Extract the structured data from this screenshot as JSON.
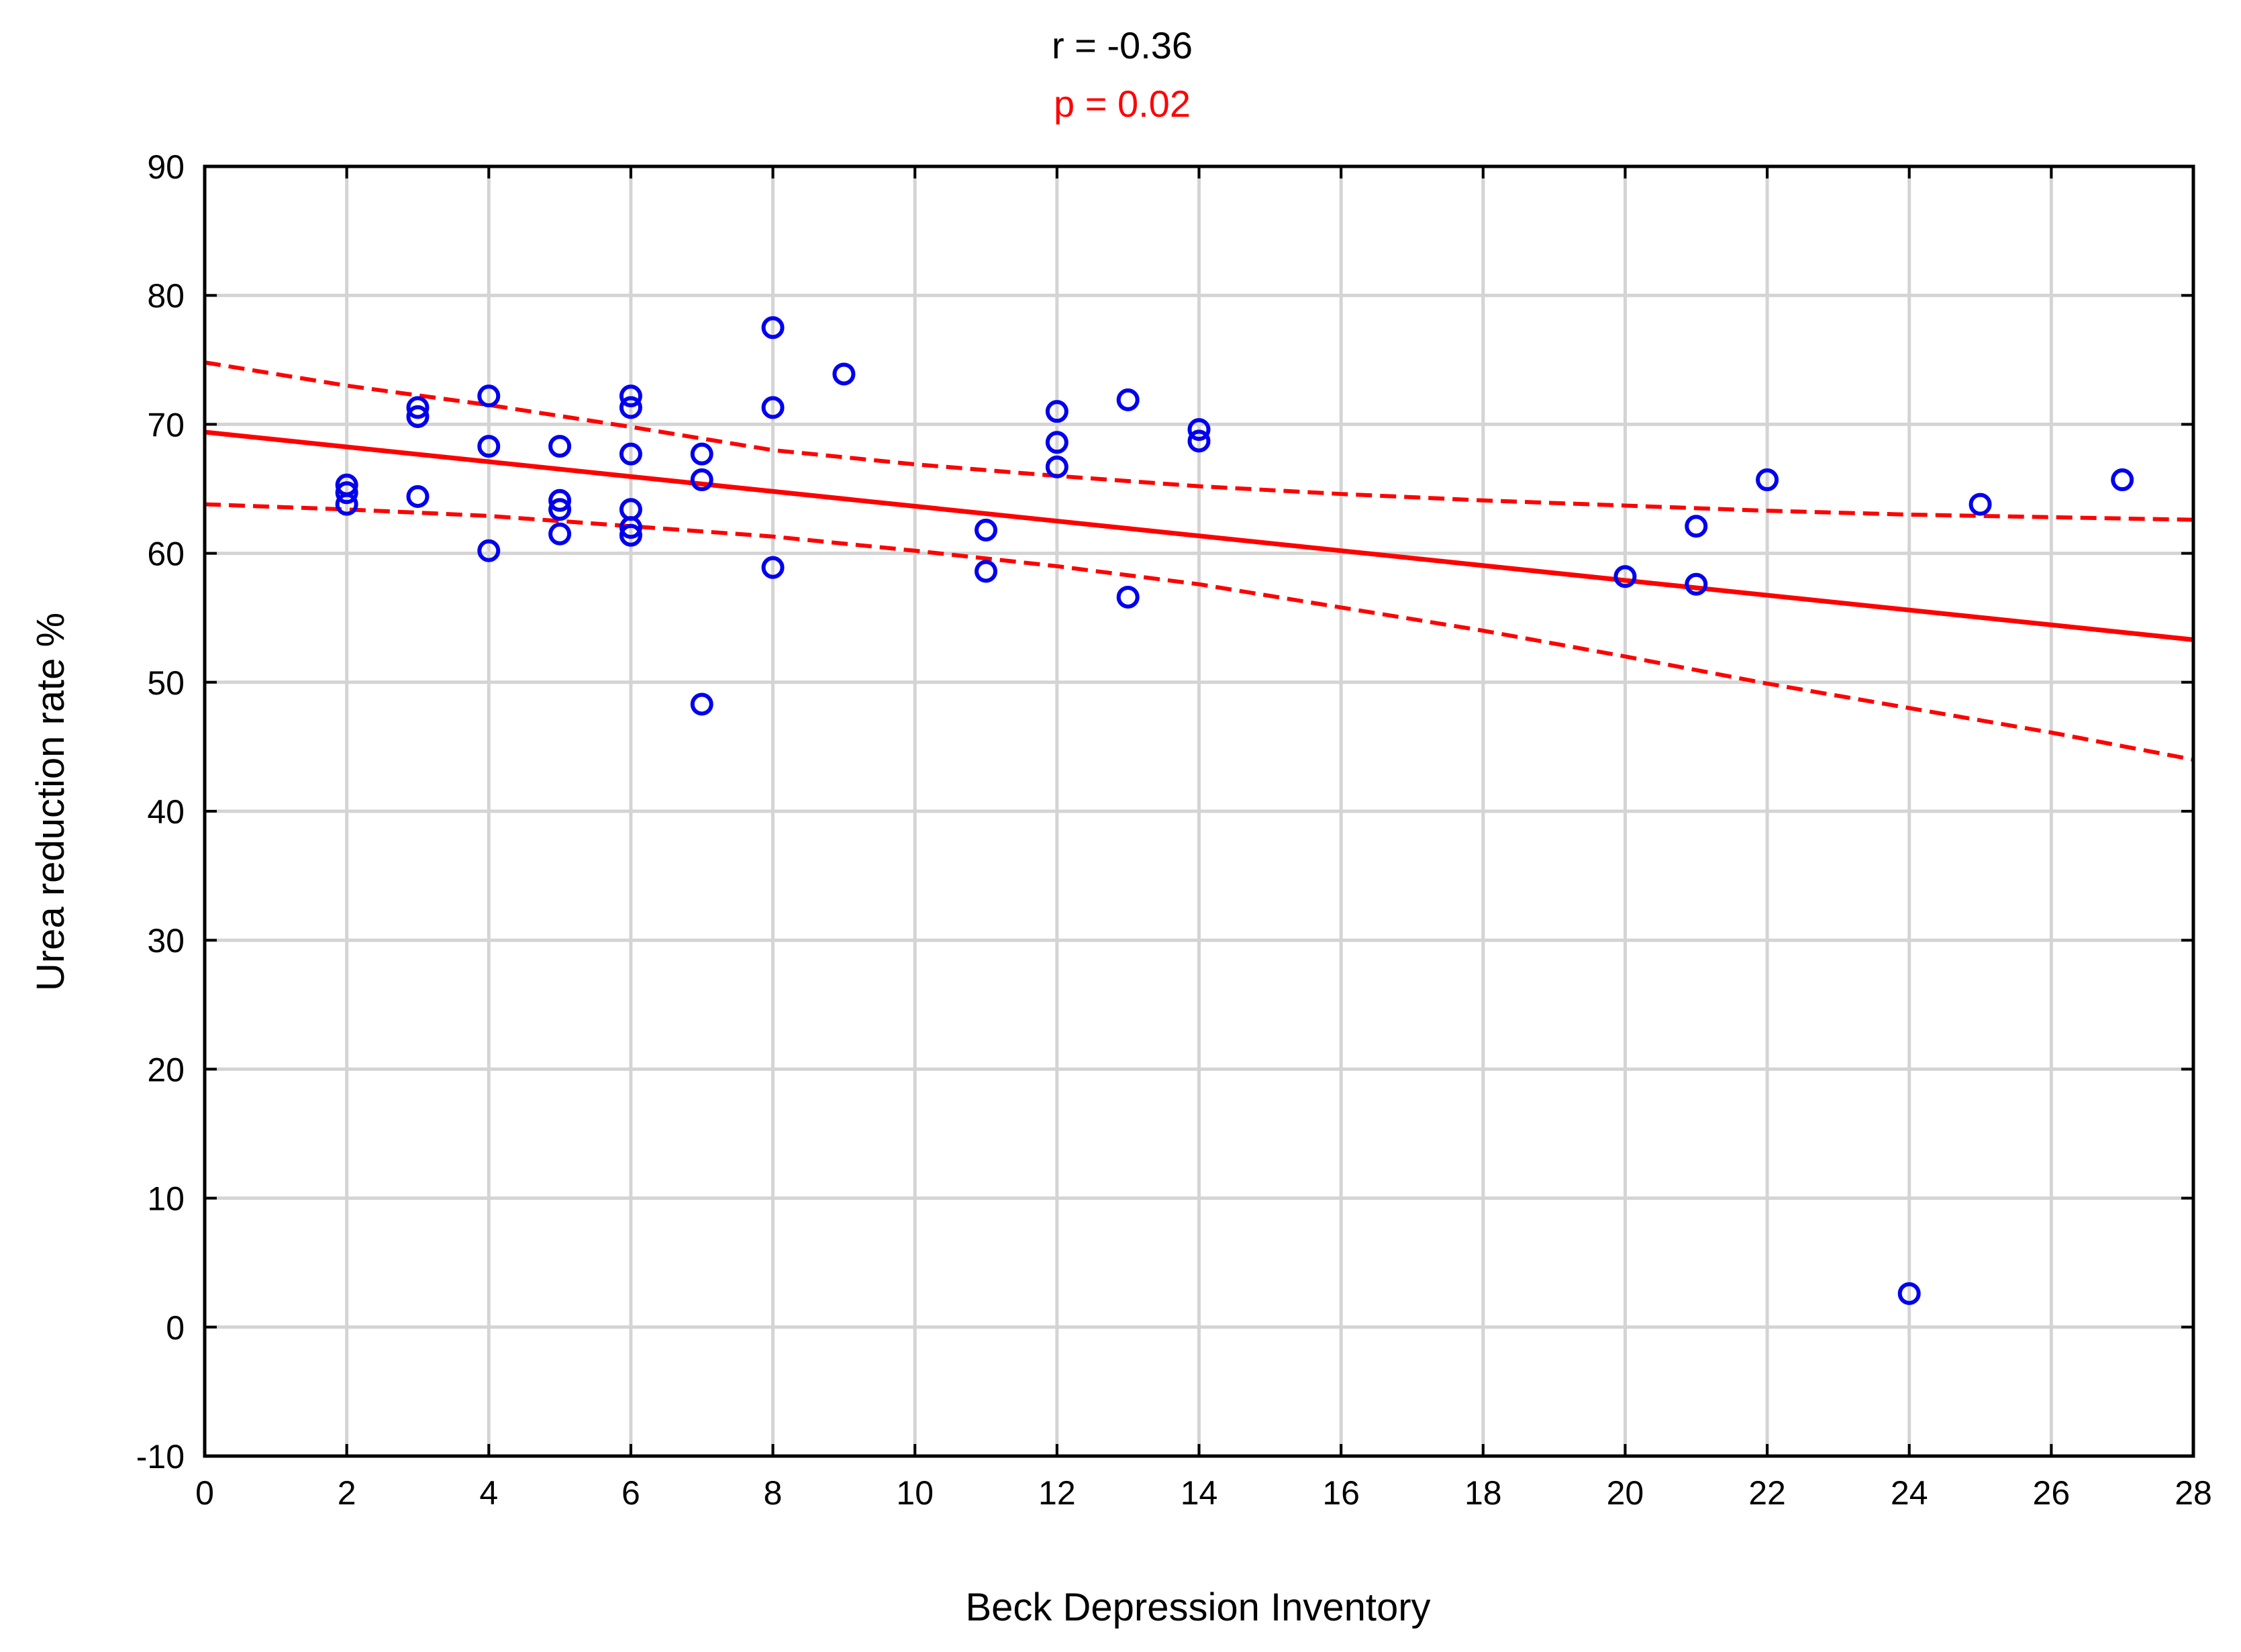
{
  "chart_data": {
    "type": "scatter",
    "stats": {
      "r_text": "r = -0.36",
      "p_text": "p = 0.02"
    },
    "xlabel": "Beck Depression Inventory",
    "ylabel": "Urea reduction rate %",
    "xlim": [
      0,
      28
    ],
    "ylim": [
      -10,
      90
    ],
    "xticks": [
      "0",
      "2",
      "4",
      "6",
      "8",
      "10",
      "12",
      "14",
      "16",
      "18",
      "20",
      "22",
      "24",
      "26",
      "28"
    ],
    "yticks": [
      "-10",
      "0",
      "10",
      "20",
      "30",
      "40",
      "50",
      "60",
      "70",
      "80",
      "90"
    ],
    "grid": true,
    "colors": {
      "points": "#0000ee",
      "fit": "#ff0000",
      "stat_r": "#000000",
      "stat_p": "#ff0000",
      "grid": "#d4d4d4",
      "axis": "#000000"
    },
    "points": [
      {
        "x": 2,
        "y": 65.3
      },
      {
        "x": 2,
        "y": 64.7
      },
      {
        "x": 2,
        "y": 63.8
      },
      {
        "x": 3,
        "y": 71.3
      },
      {
        "x": 3,
        "y": 70.6
      },
      {
        "x": 3,
        "y": 64.4
      },
      {
        "x": 4,
        "y": 72.2
      },
      {
        "x": 4,
        "y": 68.3
      },
      {
        "x": 4,
        "y": 60.2
      },
      {
        "x": 5,
        "y": 68.3
      },
      {
        "x": 5,
        "y": 64.1
      },
      {
        "x": 5,
        "y": 63.4
      },
      {
        "x": 5,
        "y": 61.5
      },
      {
        "x": 6,
        "y": 72.2
      },
      {
        "x": 6,
        "y": 71.3
      },
      {
        "x": 6,
        "y": 67.7
      },
      {
        "x": 6,
        "y": 63.4
      },
      {
        "x": 6,
        "y": 62.0
      },
      {
        "x": 6,
        "y": 61.4
      },
      {
        "x": 7,
        "y": 67.7
      },
      {
        "x": 7,
        "y": 65.7
      },
      {
        "x": 7,
        "y": 48.3
      },
      {
        "x": 8,
        "y": 77.5
      },
      {
        "x": 8,
        "y": 71.3
      },
      {
        "x": 8,
        "y": 58.9
      },
      {
        "x": 9,
        "y": 73.9
      },
      {
        "x": 11,
        "y": 61.8
      },
      {
        "x": 11,
        "y": 58.6
      },
      {
        "x": 12,
        "y": 71.0
      },
      {
        "x": 12,
        "y": 68.6
      },
      {
        "x": 12,
        "y": 66.7
      },
      {
        "x": 13,
        "y": 71.9
      },
      {
        "x": 13,
        "y": 56.6
      },
      {
        "x": 14,
        "y": 69.6
      },
      {
        "x": 14,
        "y": 68.7
      },
      {
        "x": 20,
        "y": 58.2
      },
      {
        "x": 21,
        "y": 62.1
      },
      {
        "x": 21,
        "y": 57.6
      },
      {
        "x": 22,
        "y": 65.7
      },
      {
        "x": 24,
        "y": 2.6
      },
      {
        "x": 25,
        "y": 63.8
      },
      {
        "x": 27,
        "y": 65.7
      }
    ],
    "fit_line": {
      "x": [
        0,
        28
      ],
      "y": [
        69.4,
        53.3
      ]
    },
    "ci_upper": {
      "x": [
        0,
        2,
        4,
        6,
        8,
        10,
        12,
        14,
        16,
        18,
        20,
        22,
        24,
        26,
        28
      ],
      "y": [
        74.8,
        73.0,
        71.5,
        69.8,
        68.0,
        66.9,
        66.0,
        65.2,
        64.6,
        64.1,
        63.7,
        63.3,
        63.0,
        62.8,
        62.6
      ]
    },
    "ci_lower": {
      "x": [
        0,
        2,
        4,
        6,
        8,
        10,
        12,
        14,
        16,
        18,
        20,
        22,
        24,
        26,
        28
      ],
      "y": [
        63.8,
        63.4,
        62.9,
        62.1,
        61.3,
        60.2,
        59.0,
        57.6,
        55.8,
        54.0,
        52.0,
        49.9,
        48.0,
        46.1,
        44.0
      ]
    }
  }
}
